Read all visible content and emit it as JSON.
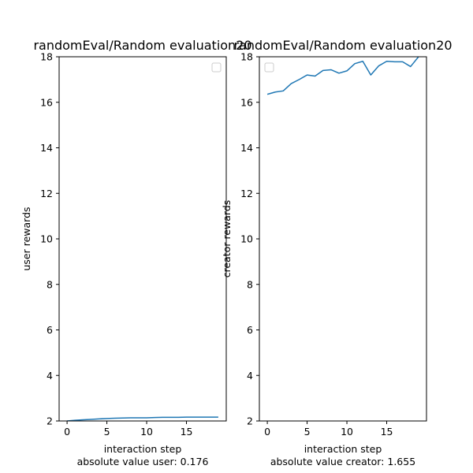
{
  "chart_data": [
    {
      "type": "line",
      "title": "randomEval/Random evaluation20",
      "xlabel": "interaction step",
      "ylabel": "user rewards",
      "footer": "absolute value user: 0.176",
      "xlim": [
        -1,
        20
      ],
      "ylim": [
        2,
        18
      ],
      "xticks": [
        0,
        5,
        10,
        15
      ],
      "yticks": [
        2,
        4,
        6,
        8,
        10,
        12,
        14,
        16,
        18
      ],
      "legend": "top-right",
      "grid": false,
      "color": "#1f77b4",
      "series": [
        {
          "x": [
            0,
            1,
            2,
            3,
            4,
            5,
            6,
            7,
            8,
            9,
            10,
            11,
            12,
            13,
            14,
            15,
            16,
            17,
            18,
            19
          ],
          "values": [
            2.0,
            2.03,
            2.05,
            2.07,
            2.09,
            2.11,
            2.12,
            2.13,
            2.14,
            2.14,
            2.14,
            2.15,
            2.16,
            2.16,
            2.16,
            2.17,
            2.17,
            2.17,
            2.17,
            2.17
          ]
        }
      ]
    },
    {
      "type": "line",
      "title": "randomEval/Random evaluation20",
      "xlabel": "interaction step",
      "ylabel": "creator rewards",
      "footer": "absolute value creator: 1.655",
      "xlim": [
        -1,
        20
      ],
      "ylim": [
        2,
        18
      ],
      "xticks": [
        0,
        5,
        10,
        15
      ],
      "yticks": [
        2,
        4,
        6,
        8,
        10,
        12,
        14,
        16,
        18
      ],
      "legend": "top-left",
      "grid": false,
      "color": "#1f77b4",
      "series": [
        {
          "x": [
            0,
            1,
            2,
            3,
            4,
            5,
            6,
            7,
            8,
            9,
            10,
            11,
            12,
            13,
            14,
            15,
            16,
            17,
            18,
            19
          ],
          "values": [
            16.35,
            16.45,
            16.5,
            16.82,
            17.0,
            17.2,
            17.15,
            17.4,
            17.43,
            17.28,
            17.38,
            17.7,
            17.8,
            17.2,
            17.6,
            17.8,
            17.78,
            17.78,
            17.57,
            18.0
          ]
        }
      ]
    }
  ]
}
